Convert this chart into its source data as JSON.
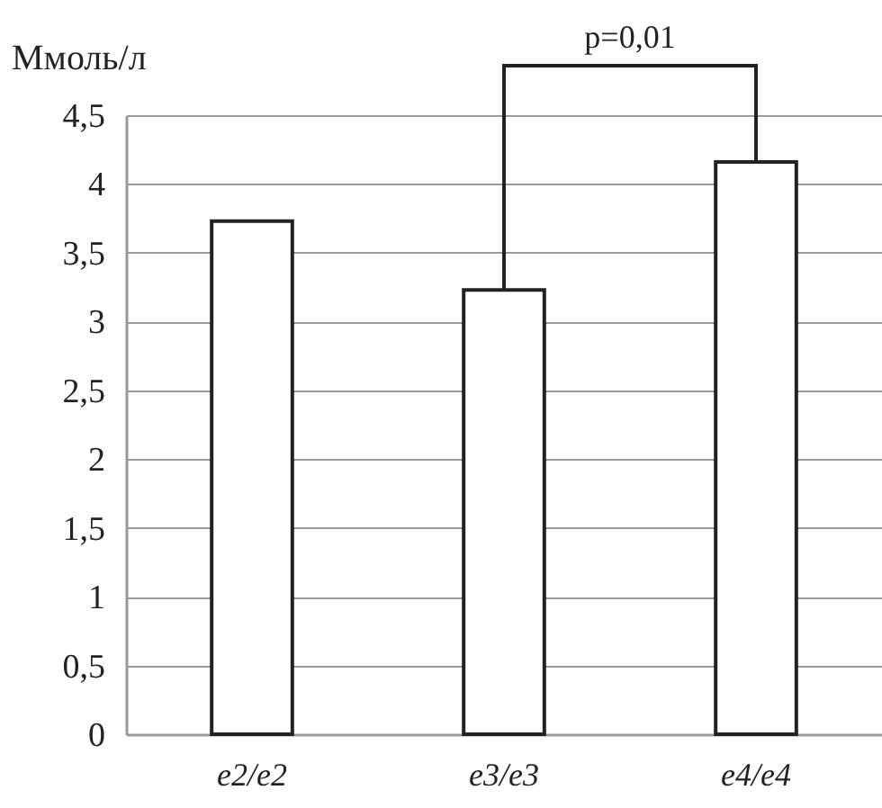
{
  "chart_data": {
    "type": "bar",
    "ylabel": "Ммоль/л",
    "categories": [
      "e2/e2",
      "e3/e3",
      "e4/e4"
    ],
    "values": [
      3.73,
      3.23,
      4.16
    ],
    "color": "#ffffff",
    "ylim": [
      0,
      4.5
    ],
    "yticks": [
      0,
      {
        "value": 0.5,
        "label": "0,5"
      },
      1,
      {
        "value": 1.5,
        "label": "1,5"
      },
      2,
      {
        "value": 2.5,
        "label": "2,5"
      },
      3,
      {
        "value": 3.5,
        "label": "3,5"
      },
      4,
      {
        "value": 4.5,
        "label": "4,5"
      }
    ],
    "grid": "y",
    "annotations": [
      "p=0,01"
    ]
  }
}
